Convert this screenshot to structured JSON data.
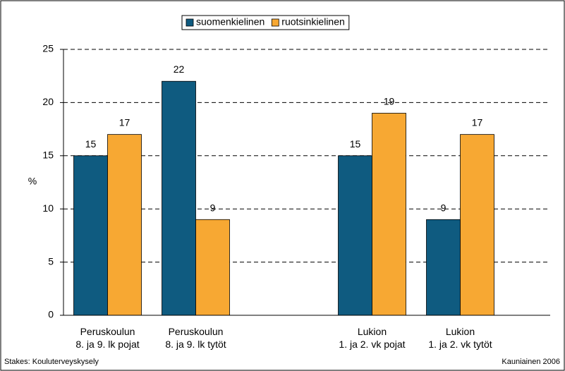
{
  "chart_data": {
    "type": "bar",
    "categories": [
      [
        "Peruskoulun",
        "8. ja 9. lk pojat"
      ],
      [
        "Peruskoulun",
        "8. ja 9. lk tytöt"
      ],
      null,
      [
        "Lukion",
        "1. ja 2. vk pojat"
      ],
      [
        "Lukion",
        "1. ja 2. vk tytöt"
      ]
    ],
    "series": [
      {
        "name": "suomenkielinen",
        "color": "#0f5b80",
        "values": [
          15,
          22,
          null,
          15,
          9
        ]
      },
      {
        "name": "ruotsinkielinen",
        "color": "#f7a833",
        "values": [
          17,
          9,
          null,
          19,
          17
        ]
      }
    ],
    "ylabel": "%",
    "ylim": [
      0,
      25
    ],
    "yticks": [
      0,
      5,
      10,
      15,
      20,
      25
    ],
    "grid": true,
    "legend": "top",
    "source": "Stakes: Kouluterveyskysely",
    "note": "Kauniainen 2006"
  }
}
